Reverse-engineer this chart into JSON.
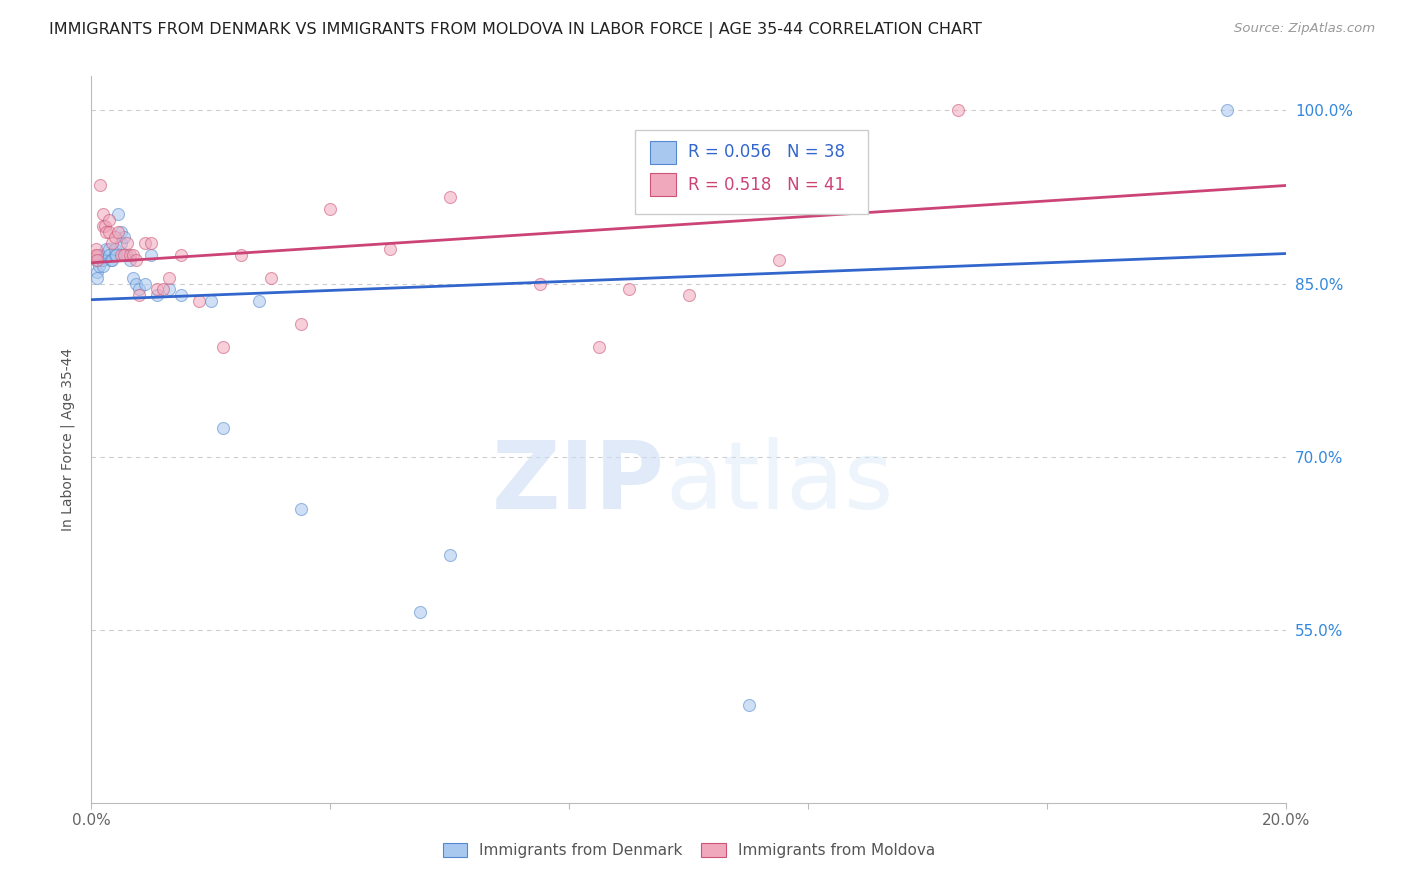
{
  "title": "IMMIGRANTS FROM DENMARK VS IMMIGRANTS FROM MOLDOVA IN LABOR FORCE | AGE 35-44 CORRELATION CHART",
  "source": "Source: ZipAtlas.com",
  "ylabel": "In Labor Force | Age 35-44",
  "ytick_vals": [
    0.55,
    0.7,
    0.85,
    1.0
  ],
  "ytick_labels": [
    "55.0%",
    "70.0%",
    "85.0%",
    "100.0%"
  ],
  "xlim": [
    0.0,
    0.2
  ],
  "ylim": [
    0.4,
    1.03
  ],
  "denmark_color": "#a8c8f0",
  "moldova_color": "#f0a8bc",
  "denmark_edge_color": "#5588cc",
  "moldova_edge_color": "#cc5577",
  "trend_denmark_color": "#3366cc",
  "trend_moldova_color": "#cc4477",
  "legend_r_denmark": "R = 0.056",
  "legend_n_denmark": "N = 38",
  "legend_r_moldova": "R = 0.518",
  "legend_n_moldova": "N = 41",
  "denmark_x": [
    0.0008,
    0.001,
    0.001,
    0.0012,
    0.0015,
    0.0018,
    0.002,
    0.002,
    0.0025,
    0.003,
    0.003,
    0.0032,
    0.0035,
    0.004,
    0.004,
    0.0042,
    0.0045,
    0.005,
    0.005,
    0.0055,
    0.006,
    0.0065,
    0.007,
    0.0075,
    0.008,
    0.009,
    0.01,
    0.011,
    0.013,
    0.015,
    0.02,
    0.022,
    0.028,
    0.035,
    0.055,
    0.06,
    0.11,
    0.19
  ],
  "denmark_y": [
    0.87,
    0.86,
    0.855,
    0.865,
    0.875,
    0.87,
    0.87,
    0.865,
    0.88,
    0.88,
    0.875,
    0.87,
    0.87,
    0.875,
    0.88,
    0.875,
    0.91,
    0.895,
    0.885,
    0.89,
    0.875,
    0.87,
    0.855,
    0.85,
    0.845,
    0.85,
    0.875,
    0.84,
    0.845,
    0.84,
    0.835,
    0.725,
    0.835,
    0.655,
    0.565,
    0.615,
    0.485,
    1.0
  ],
  "moldova_x": [
    0.0006,
    0.0008,
    0.001,
    0.001,
    0.0015,
    0.002,
    0.002,
    0.0022,
    0.0025,
    0.003,
    0.003,
    0.0035,
    0.004,
    0.0045,
    0.005,
    0.0055,
    0.006,
    0.0065,
    0.007,
    0.0075,
    0.008,
    0.009,
    0.01,
    0.011,
    0.012,
    0.013,
    0.015,
    0.018,
    0.022,
    0.025,
    0.03,
    0.035,
    0.04,
    0.05,
    0.06,
    0.075,
    0.085,
    0.09,
    0.1,
    0.115,
    0.145
  ],
  "moldova_y": [
    0.875,
    0.88,
    0.875,
    0.87,
    0.935,
    0.91,
    0.9,
    0.9,
    0.895,
    0.905,
    0.895,
    0.885,
    0.89,
    0.895,
    0.875,
    0.875,
    0.885,
    0.875,
    0.875,
    0.87,
    0.84,
    0.885,
    0.885,
    0.845,
    0.845,
    0.855,
    0.875,
    0.835,
    0.795,
    0.875,
    0.855,
    0.815,
    0.915,
    0.88,
    0.925,
    0.85,
    0.795,
    0.845,
    0.84,
    0.87,
    1.0
  ],
  "watermark_zip": "ZIP",
  "watermark_atlas": "atlas",
  "marker_size": 75,
  "marker_alpha": 0.55,
  "background_color": "#ffffff",
  "grid_color": "#cccccc",
  "axis_color": "#bbbbbb",
  "right_yaxis_color": "#3388dd",
  "title_fontsize": 11.5,
  "source_fontsize": 9.5,
  "label_fontsize": 10
}
